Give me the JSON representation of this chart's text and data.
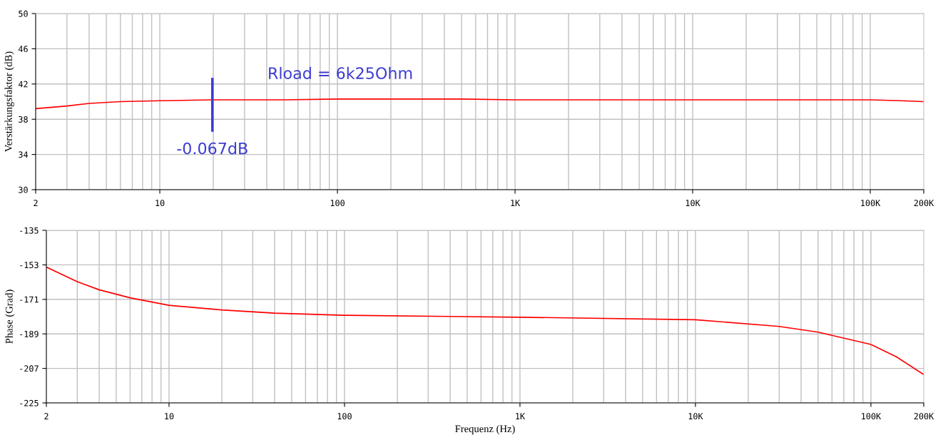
{
  "chart_data": [
    {
      "type": "line",
      "ylabel": "Verstärkungsfaktor (dB)",
      "log": "x",
      "grid": true,
      "xlim": [
        2,
        200000
      ],
      "ylim": [
        30,
        50
      ],
      "xticks": [
        2,
        10,
        100,
        {
          "value": 1000,
          "label": "1K"
        },
        {
          "value": 10000,
          "label": "10K"
        },
        {
          "value": 100000,
          "label": "100K"
        },
        {
          "value": 200000,
          "label": "200K"
        }
      ],
      "yticks": [
        30,
        34,
        38,
        42,
        46,
        50
      ],
      "series": [
        {
          "color": "#ff0000",
          "x": [
            2,
            3,
            4,
            6,
            10,
            20,
            50,
            100,
            200,
            500,
            1000,
            5000,
            10000,
            50000,
            100000,
            150000,
            200000
          ],
          "values": [
            39.2,
            39.5,
            39.8,
            40.0,
            40.1,
            40.2,
            40.2,
            40.3,
            40.3,
            40.3,
            40.2,
            40.2,
            40.2,
            40.2,
            40.2,
            40.1,
            40.0
          ]
        }
      ],
      "annotations": [
        "Rload = 6k25Ohm",
        "-0.067dB"
      ]
    },
    {
      "type": "line",
      "xlabel": "Frequenz (Hz)",
      "ylabel": "Phase (Grad)",
      "log": "x",
      "grid": true,
      "xlim": [
        2,
        200000
      ],
      "ylim": [
        -225,
        -135
      ],
      "xticks": [
        2,
        10,
        100,
        {
          "value": 1000,
          "label": "1K"
        },
        {
          "value": 10000,
          "label": "10K"
        },
        {
          "value": 100000,
          "label": "100K"
        },
        {
          "value": 200000,
          "label": "200K"
        }
      ],
      "yticks": [
        -225,
        -207,
        -189,
        -171,
        -153,
        -135
      ],
      "series": [
        {
          "color": "#ff0000",
          "x": [
            2,
            3,
            4,
            6,
            10,
            20,
            40,
            100,
            400,
            1000,
            10000,
            30000,
            50000,
            100000,
            140000,
            200000
          ],
          "values": [
            -154.2,
            -161.8,
            -166.0,
            -170.2,
            -174.1,
            -176.5,
            -178.2,
            -179.3,
            -179.9,
            -180.3,
            -181.6,
            -185.1,
            -188.1,
            -194.5,
            -201.0,
            -210.2
          ]
        }
      ]
    }
  ]
}
